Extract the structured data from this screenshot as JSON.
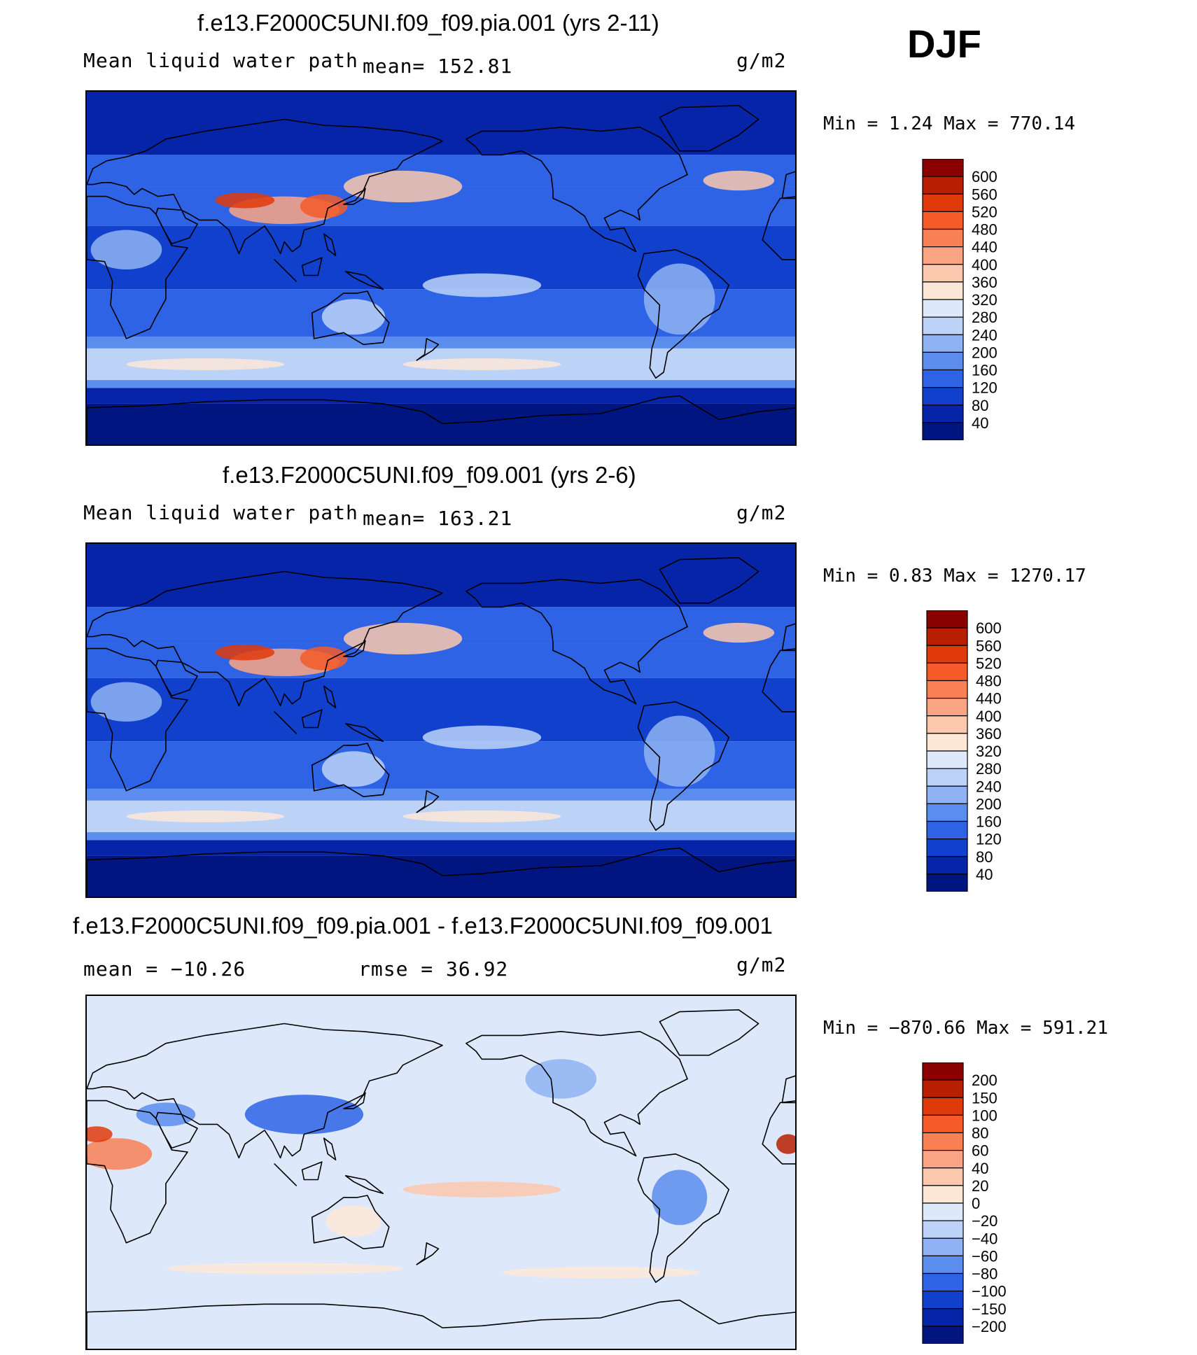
{
  "season": "DJF",
  "panels": [
    {
      "title": "f.e13.F2000C5UNI.f09_f09.pia.001 (yrs 2-11)",
      "left_label": "Mean liquid water path",
      "center_label": "mean=  152.81",
      "units": "g/m2",
      "min_max": "Min =    1.24 Max = 770.14",
      "kind": "mean"
    },
    {
      "title": "f.e13.F2000C5UNI.f09_f09.001 (yrs 2-6)",
      "left_label": "Mean liquid water path",
      "center_label": "mean=  163.21",
      "units": "g/m2",
      "min_max": "Min =    0.83 Max = 1270.17",
      "kind": "mean"
    },
    {
      "title": "f.e13.F2000C5UNI.f09_f09.pia.001 - f.e13.F2000C5UNI.f09_f09.001",
      "left_label": "mean = −10.26",
      "center_label": "rmse =   36.92",
      "units": "g/m2",
      "min_max": "Min = −870.66 Max = 591.21",
      "kind": "diff"
    }
  ],
  "colorbars": {
    "mean": {
      "labels": [
        "600",
        "560",
        "520",
        "480",
        "440",
        "400",
        "360",
        "320",
        "280",
        "240",
        "200",
        "160",
        "120",
        "80",
        "40"
      ],
      "colors": [
        "#8b0000",
        "#b81e00",
        "#e03a0a",
        "#f55a28",
        "#f98055",
        "#fba483",
        "#fcc8ad",
        "#fde8d8",
        "#dde9fa",
        "#bcd3f7",
        "#8fb3f2",
        "#5a8ded",
        "#2e63e6",
        "#1040cc",
        "#0524a8",
        "#001580"
      ]
    },
    "diff": {
      "labels": [
        "200",
        "150",
        "100",
        "80",
        "60",
        "40",
        "20",
        "0",
        "−20",
        "−40",
        "−60",
        "−80",
        "−100",
        "−150",
        "−200"
      ],
      "colors": [
        "#8b0000",
        "#b81e00",
        "#e03a0a",
        "#f55a28",
        "#f98055",
        "#fba483",
        "#fcc8ad",
        "#fde8d8",
        "#dde9fa",
        "#bcd3f7",
        "#8fb3f2",
        "#5a8ded",
        "#2e63e6",
        "#1040cc",
        "#0524a8",
        "#001580"
      ]
    }
  },
  "chart_data": [
    {
      "type": "heatmap",
      "title": "f.e13.F2000C5UNI.f09_f09.pia.001 (yrs 2-11)",
      "variable": "Mean liquid water path",
      "units": "g/m2",
      "mean": 152.81,
      "min": 1.24,
      "max": 770.14,
      "colorbar_levels": [
        40,
        80,
        120,
        160,
        200,
        240,
        280,
        320,
        360,
        400,
        440,
        480,
        520,
        560,
        600
      ]
    },
    {
      "type": "heatmap",
      "title": "f.e13.F2000C5UNI.f09_f09.001 (yrs 2-6)",
      "variable": "Mean liquid water path",
      "units": "g/m2",
      "mean": 163.21,
      "min": 0.83,
      "max": 1270.17,
      "colorbar_levels": [
        40,
        80,
        120,
        160,
        200,
        240,
        280,
        320,
        360,
        400,
        440,
        480,
        520,
        560,
        600
      ]
    },
    {
      "type": "heatmap",
      "title": "f.e13.F2000C5UNI.f09_f09.pia.001 - f.e13.F2000C5UNI.f09_f09.001",
      "units": "g/m2",
      "mean": -10.26,
      "rmse": 36.92,
      "min": -870.66,
      "max": 591.21,
      "colorbar_levels": [
        -200,
        -150,
        -100,
        -80,
        -60,
        -40,
        -20,
        0,
        20,
        40,
        60,
        80,
        100,
        150,
        200
      ]
    }
  ]
}
